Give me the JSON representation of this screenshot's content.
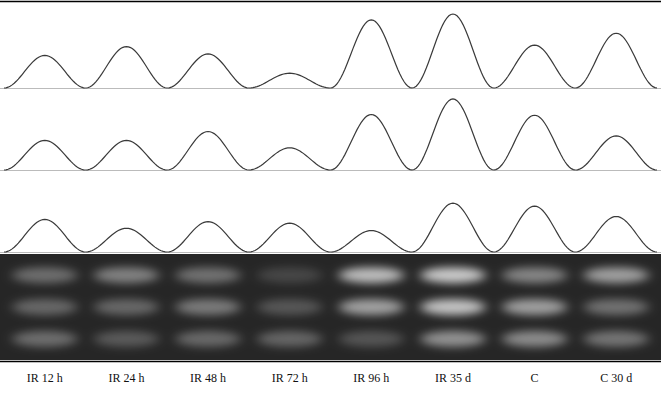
{
  "chart_data": {
    "type": "line",
    "categories": [
      "IR 12 h",
      "IR 24 h",
      "IR 48 h",
      "IR 72 h",
      "IR 96 h",
      "IR 35 d",
      "C",
      "C 30 d"
    ],
    "series": [
      {
        "color": "#3a3a3a",
        "values": [
          44,
          56,
          46,
          20,
          92,
          100,
          58,
          74
        ]
      },
      {
        "color": "#3a3a3a",
        "values": [
          40,
          40,
          52,
          30,
          75,
          96,
          74,
          46
        ]
      },
      {
        "color": "#3a3a3a",
        "values": [
          44,
          32,
          41,
          39,
          29,
          66,
          62,
          48
        ]
      }
    ],
    "ylim": [
      0,
      100
    ],
    "tick_labels": "x",
    "grid": false
  }
}
